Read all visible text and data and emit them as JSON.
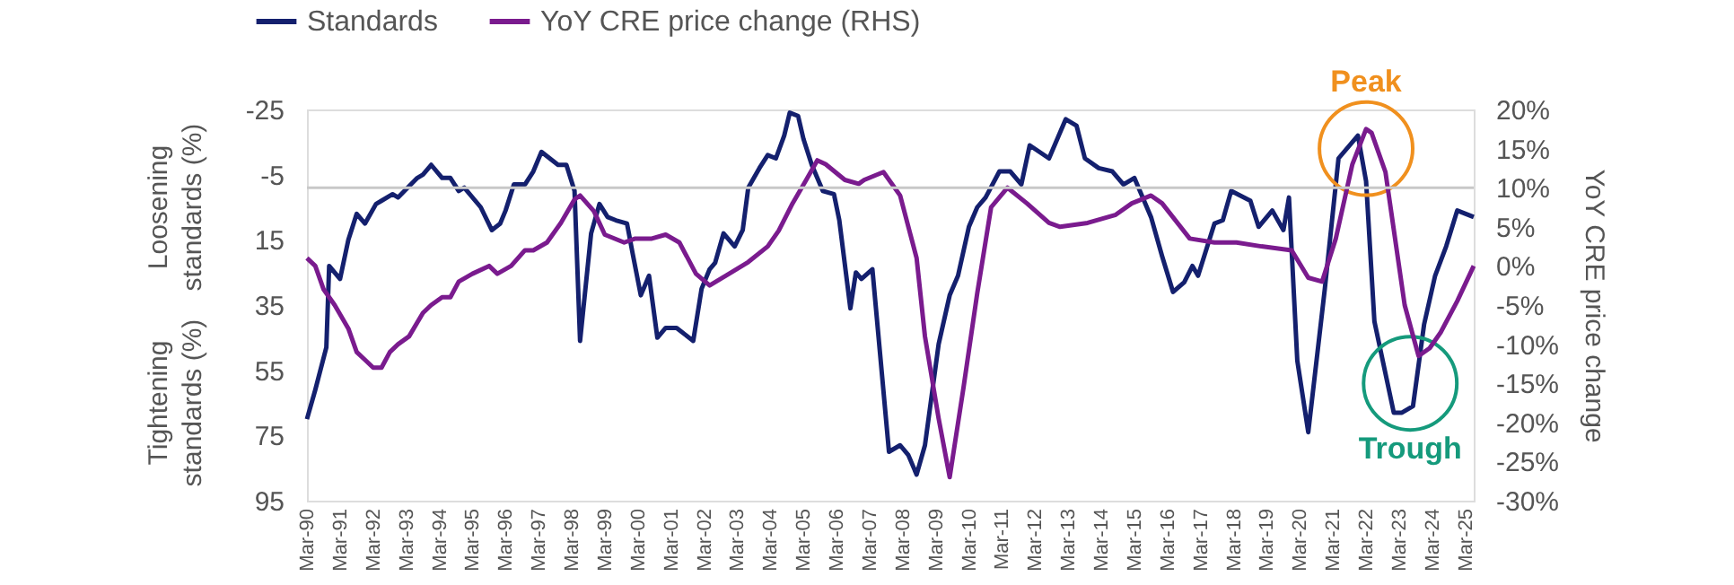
{
  "chart_data": {
    "type": "line",
    "legend": "top",
    "y2label": "YoY CRE price change",
    "annotations": [
      "Loosening standards (%)",
      "Tightening standards (%)",
      {
        "text": "Peak",
        "x": "2022-03",
        "y": -13
      },
      {
        "text": "Trough",
        "x": "2023-07",
        "y": 59
      }
    ],
    "xlim": [
      "1990-03",
      "2025-06"
    ],
    "xticks": [
      {
        "value": "1990-03",
        "label": "Mar-90"
      },
      {
        "value": "1991-03",
        "label": "Mar-91"
      },
      {
        "value": "1992-03",
        "label": "Mar-92"
      },
      {
        "value": "1993-03",
        "label": "Mar-93"
      },
      {
        "value": "1994-03",
        "label": "Mar-94"
      },
      {
        "value": "1995-03",
        "label": "Mar-95"
      },
      {
        "value": "1996-03",
        "label": "Mar-96"
      },
      {
        "value": "1997-03",
        "label": "Mar-97"
      },
      {
        "value": "1998-03",
        "label": "Mar-98"
      },
      {
        "value": "1999-03",
        "label": "Mar-99"
      },
      {
        "value": "2000-03",
        "label": "Mar-00"
      },
      {
        "value": "2001-03",
        "label": "Mar-01"
      },
      {
        "value": "2002-03",
        "label": "Mar-02"
      },
      {
        "value": "2003-03",
        "label": "Mar-03"
      },
      {
        "value": "2004-03",
        "label": "Mar-04"
      },
      {
        "value": "2005-03",
        "label": "Mar-05"
      },
      {
        "value": "2006-03",
        "label": "Mar-06"
      },
      {
        "value": "2007-03",
        "label": "Mar-07"
      },
      {
        "value": "2008-03",
        "label": "Mar-08"
      },
      {
        "value": "2009-03",
        "label": "Mar-09"
      },
      {
        "value": "2010-03",
        "label": "Mar-10"
      },
      {
        "value": "2011-03",
        "label": "Mar-11"
      },
      {
        "value": "2012-03",
        "label": "Mar-12"
      },
      {
        "value": "2013-03",
        "label": "Mar-13"
      },
      {
        "value": "2014-03",
        "label": "Mar-14"
      },
      {
        "value": "2015-03",
        "label": "Mar-15"
      },
      {
        "value": "2016-03",
        "label": "Mar-16"
      },
      {
        "value": "2017-03",
        "label": "Mar-17"
      },
      {
        "value": "2018-03",
        "label": "Mar-18"
      },
      {
        "value": "2019-03",
        "label": "Mar-19"
      },
      {
        "value": "2020-03",
        "label": "Mar-20"
      },
      {
        "value": "2021-03",
        "label": "Mar-21"
      },
      {
        "value": "2022-03",
        "label": "Mar-22"
      },
      {
        "value": "2023-03",
        "label": "Mar-23"
      },
      {
        "value": "2024-03",
        "label": "Mar-24"
      },
      {
        "value": "2025-03",
        "label": "Mar-25"
      }
    ],
    "ylim": [
      95,
      -25
    ],
    "yticks": [
      -25,
      -5,
      15,
      35,
      55,
      75,
      95
    ],
    "y2lim": [
      -30,
      20
    ],
    "y2ticks": [
      {
        "value": -30,
        "label": "-30%"
      },
      {
        "value": -25,
        "label": "-25%"
      },
      {
        "value": -20,
        "label": "-20%"
      },
      {
        "value": -15,
        "label": "-15%"
      },
      {
        "value": -10,
        "label": "-10%"
      },
      {
        "value": -5,
        "label": "-5%"
      },
      {
        "value": 0,
        "label": "0%"
      },
      {
        "value": 5,
        "label": "5%"
      },
      {
        "value": 10,
        "label": "10%"
      },
      {
        "value": 15,
        "label": "15%"
      },
      {
        "value": 20,
        "label": "20%"
      }
    ],
    "ref_lines": [
      {
        "axis": "y2",
        "value": 10,
        "color": "#c8c8c8"
      }
    ],
    "series": [
      {
        "name": "Standards",
        "color": "#14206e",
        "x": [
          "1990-03",
          "1990-06",
          "1990-10",
          "1990-11",
          "1991-03",
          "1991-06",
          "1991-09",
          "1991-12",
          "1992-04",
          "1992-06",
          "1992-10",
          "1992-12",
          "1993-07",
          "1993-09",
          "1993-12",
          "1994-04",
          "1994-07",
          "1994-10",
          "1994-12",
          "1995-06",
          "1995-10",
          "1996-01",
          "1996-03",
          "1996-06",
          "1996-10",
          "1997-01",
          "1997-04",
          "1997-07",
          "1997-10",
          "1998-01",
          "1998-04",
          "1998-06",
          "1998-10",
          "1999-01",
          "1999-04",
          "1999-07",
          "1999-11",
          "2000-01",
          "2000-04",
          "2000-07",
          "2000-10",
          "2001-01",
          "2001-05",
          "2001-11",
          "2002-02",
          "2002-05",
          "2002-07",
          "2002-10",
          "2003-02",
          "2003-05",
          "2003-07",
          "2003-11",
          "2004-02",
          "2004-05",
          "2004-08",
          "2004-10",
          "2005-01",
          "2005-03",
          "2005-06",
          "2005-10",
          "2006-02",
          "2006-04",
          "2006-08",
          "2006-10",
          "2006-12",
          "2007-04",
          "2007-10",
          "2008-02",
          "2008-05",
          "2008-08",
          "2008-11",
          "2009-04",
          "2009-08",
          "2009-11",
          "2010-03",
          "2010-06",
          "2010-09",
          "2011-02",
          "2011-06",
          "2011-10",
          "2012-01",
          "2012-08",
          "2013-02",
          "2013-06",
          "2013-09",
          "2014-02",
          "2014-07",
          "2014-11",
          "2015-03",
          "2015-09",
          "2016-01",
          "2016-05",
          "2016-09",
          "2016-12",
          "2017-02",
          "2017-08",
          "2017-11",
          "2018-02",
          "2018-09",
          "2018-12",
          "2019-05",
          "2019-09",
          "2019-11",
          "2020-02",
          "2020-06",
          "2020-12",
          "2021-05",
          "2021-12",
          "2022-03",
          "2022-06",
          "2023-01",
          "2023-04",
          "2023-08",
          "2023-12",
          "2024-04",
          "2024-08",
          "2024-12",
          "2025-06"
        ],
        "values": [
          70,
          61,
          48,
          23,
          27,
          15,
          7,
          10,
          4,
          3,
          1,
          2,
          -4,
          -5,
          -8,
          -4,
          -4,
          0,
          -1,
          5,
          12,
          10,
          6,
          -2,
          -2,
          -6,
          -12,
          -10,
          -8,
          -8,
          0,
          46,
          13,
          4,
          8,
          9,
          10,
          19,
          32,
          26,
          45,
          42,
          42,
          46,
          30,
          24,
          22,
          13,
          17,
          12,
          -1,
          -7,
          -11,
          -10,
          -17,
          -24,
          -23,
          -16,
          -8,
          0,
          1,
          9,
          36,
          25,
          27,
          24,
          80,
          78,
          81,
          87,
          78,
          47,
          32,
          26,
          11,
          5,
          2,
          -6,
          -6,
          -2,
          -14,
          -10,
          -22,
          -20,
          -10,
          -7,
          -6,
          -2,
          -4,
          8,
          20,
          31,
          28,
          23,
          26,
          10,
          9,
          0,
          3,
          11,
          6,
          12,
          2,
          52,
          74,
          30,
          -10,
          -17,
          -3,
          40,
          68,
          68,
          66,
          41,
          26,
          17,
          6,
          8
        ]
      },
      {
        "name": "YoY CRE price change (RHS)",
        "color": "#7a1b8e",
        "axis": "y2",
        "x": [
          "1990-03",
          "1990-06",
          "1990-09",
          "1991-01",
          "1991-06",
          "1991-09",
          "1991-12",
          "1992-03",
          "1992-06",
          "1992-09",
          "1992-12",
          "1993-04",
          "1993-09",
          "1993-12",
          "1994-04",
          "1994-07",
          "1994-10",
          "1995-03",
          "1995-09",
          "1995-12",
          "1996-05",
          "1996-10",
          "1997-01",
          "1997-06",
          "1997-11",
          "1998-04",
          "1998-06",
          "1998-11",
          "1999-03",
          "1999-10",
          "2000-02",
          "2000-08",
          "2001-01",
          "2001-06",
          "2001-12",
          "2002-05",
          "2002-12",
          "2003-07",
          "2004-02",
          "2004-06",
          "2004-11",
          "2005-04",
          "2005-08",
          "2005-11",
          "2006-06",
          "2006-11",
          "2007-01",
          "2007-08",
          "2008-02",
          "2008-08",
          "2008-11",
          "2009-04",
          "2009-08",
          "2010-01",
          "2010-06",
          "2010-11",
          "2011-05",
          "2011-12",
          "2012-08",
          "2012-12",
          "2013-10",
          "2014-08",
          "2015-02",
          "2015-09",
          "2016-01",
          "2016-11",
          "2017-08",
          "2018-04",
          "2019-01",
          "2019-12",
          "2020-06",
          "2020-11",
          "2021-04",
          "2021-10",
          "2022-03",
          "2022-05",
          "2022-10",
          "2023-05",
          "2023-10",
          "2024-02",
          "2024-06",
          "2024-12",
          "2025-06"
        ],
        "values": [
          1,
          0,
          -3,
          -5,
          -8,
          -11,
          -12,
          -13,
          -13,
          -11,
          -10,
          -9,
          -6,
          -5,
          -4,
          -4,
          -2,
          -1,
          0,
          -1,
          0,
          2,
          2,
          3,
          5.5,
          8.5,
          9,
          7,
          4,
          3,
          3.5,
          3.5,
          4,
          3,
          -1,
          -2.5,
          -1,
          0.5,
          2.5,
          4.5,
          8,
          11,
          13.5,
          13,
          11,
          10.5,
          11,
          12,
          9,
          1,
          -9,
          -19.5,
          -27,
          -15.5,
          -3.5,
          7.5,
          10,
          8,
          5.5,
          5,
          5.5,
          6.5,
          8,
          9,
          8,
          3.5,
          3,
          3,
          2.5,
          2,
          -1.5,
          -2,
          3.5,
          13,
          17.5,
          17,
          12,
          -5,
          -11.5,
          -10.5,
          -8.5,
          -4.5,
          0
        ]
      }
    ]
  }
}
